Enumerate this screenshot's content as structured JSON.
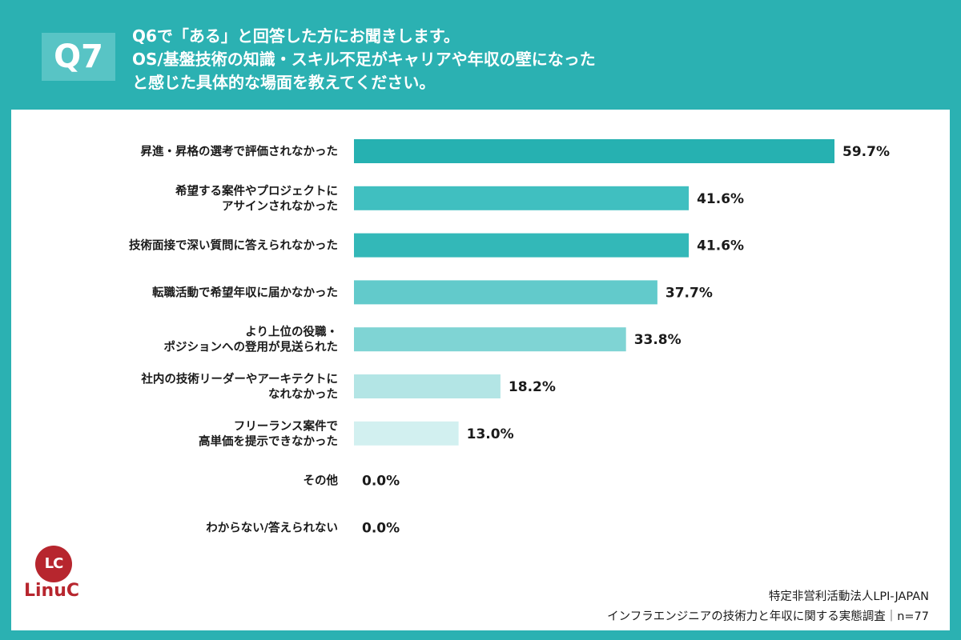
{
  "header": {
    "badge": "Q7",
    "question_lines": [
      "Q6で「ある」と回答した方にお聞きします。",
      "OS/基盤技術の知識・スキル不足がキャリアや年収の壁になった",
      "と感じた具体的な場面を教えてください。"
    ]
  },
  "logo": {
    "mark": "LC",
    "name": "LinuC"
  },
  "source": {
    "org": "特定非営利活動法人LPI-JAPAN",
    "survey": "インフラエンジニアの技術力と年収に関する実態調査｜n=77"
  },
  "colors": {
    "background": "#2bb1b2",
    "bars": [
      "#26b1b1",
      "#40bfc0",
      "#33b8b8",
      "#62cacb",
      "#7fd4d4",
      "#b3e5e5",
      "#d2f0f0",
      "#e5f6f6",
      "#e5f6f6"
    ]
  },
  "chart_data": {
    "type": "bar",
    "orientation": "horizontal",
    "categories": [
      [
        "昇進・昇格の選考で評価されなかった"
      ],
      [
        "希望する案件やプロジェクトに",
        "アサインされなかった"
      ],
      [
        "技術面接で深い質問に答えられなかった"
      ],
      [
        "転職活動で希望年収に届かなかった"
      ],
      [
        "より上位の役職・",
        "ポジションへの登用が見送られた"
      ],
      [
        "社内の技術リーダーやアーキテクトに",
        "なれなかった"
      ],
      [
        "フリーランス案件で",
        "高単価を提示できなかった"
      ],
      [
        "その他"
      ],
      [
        "わからない/答えられない"
      ]
    ],
    "values": [
      59.7,
      41.6,
      41.6,
      37.7,
      33.8,
      18.2,
      13.0,
      0.0,
      0.0
    ],
    "value_labels": [
      "59.7%",
      "41.6%",
      "41.6%",
      "37.7%",
      "33.8%",
      "18.2%",
      "13.0%",
      "0.0%",
      "0.0%"
    ],
    "xlim": [
      0,
      70
    ],
    "grid": false,
    "legend": "none"
  }
}
